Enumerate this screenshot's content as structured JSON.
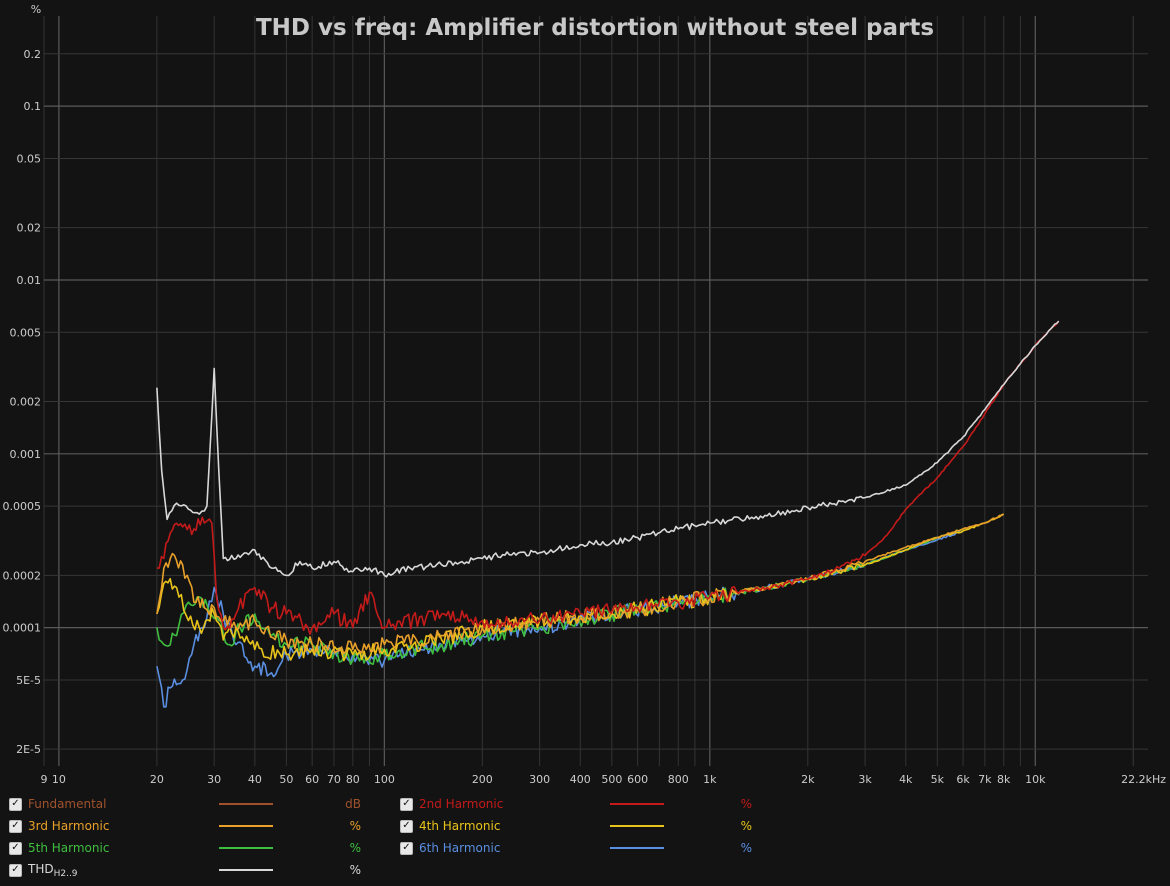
{
  "chart_data": {
    "type": "line",
    "title": "THD vs freq: Amplifier distortion without steel parts",
    "ylabel": "%",
    "y_scale": "log",
    "x_scale": "log",
    "xlim": [
      9,
      22200
    ],
    "ylim": [
      1.6e-05,
      0.33
    ],
    "grid": true,
    "x_ticks": [
      {
        "v": 9,
        "label": "9"
      },
      {
        "v": 10,
        "label": "10"
      },
      {
        "v": 20,
        "label": "20"
      },
      {
        "v": 30,
        "label": "30"
      },
      {
        "v": 40,
        "label": "40"
      },
      {
        "v": 50,
        "label": "50"
      },
      {
        "v": 60,
        "label": "60"
      },
      {
        "v": 70,
        "label": "70"
      },
      {
        "v": 80,
        "label": "80"
      },
      {
        "v": 100,
        "label": "100"
      },
      {
        "v": 200,
        "label": "200"
      },
      {
        "v": 300,
        "label": "300"
      },
      {
        "v": 400,
        "label": "400"
      },
      {
        "v": 500,
        "label": "500"
      },
      {
        "v": 600,
        "label": "600"
      },
      {
        "v": 800,
        "label": "800"
      },
      {
        "v": 1000,
        "label": "1k"
      },
      {
        "v": 2000,
        "label": "2k"
      },
      {
        "v": 3000,
        "label": "3k"
      },
      {
        "v": 4000,
        "label": "4k"
      },
      {
        "v": 5000,
        "label": "5k"
      },
      {
        "v": 6000,
        "label": "6k"
      },
      {
        "v": 7000,
        "label": "7k"
      },
      {
        "v": 8000,
        "label": "8k"
      },
      {
        "v": 10000,
        "label": "10k"
      },
      {
        "v": 22200,
        "label": "22.2kHz"
      }
    ],
    "y_ticks": [
      {
        "v": 0.2,
        "label": "0.2"
      },
      {
        "v": 0.1,
        "label": "0.1"
      },
      {
        "v": 0.05,
        "label": "0.05"
      },
      {
        "v": 0.02,
        "label": "0.02"
      },
      {
        "v": 0.01,
        "label": "0.01"
      },
      {
        "v": 0.005,
        "label": "0.005"
      },
      {
        "v": 0.002,
        "label": "0.002"
      },
      {
        "v": 0.001,
        "label": "0.001"
      },
      {
        "v": 0.0005,
        "label": "0.0005"
      },
      {
        "v": 0.0002,
        "label": "0.0002"
      },
      {
        "v": 0.0001,
        "label": "0.0001"
      },
      {
        "v": 5e-05,
        "label": "5E-5"
      },
      {
        "v": 2e-05,
        "label": "2E-5"
      }
    ],
    "series": [
      {
        "name": "THD",
        "color": "#d8d8d8",
        "points": [
          [
            20,
            0.0024
          ],
          [
            20.7,
            0.0008
          ],
          [
            21.5,
            0.00042
          ],
          [
            23,
            0.00052
          ],
          [
            25,
            0.00048
          ],
          [
            27,
            0.00045
          ],
          [
            28.5,
            0.0005
          ],
          [
            30,
            0.0031
          ],
          [
            31,
            0.0008
          ],
          [
            32,
            0.00025
          ],
          [
            35,
            0.00025
          ],
          [
            40,
            0.00028
          ],
          [
            45,
            0.00022
          ],
          [
            50,
            0.0002
          ],
          [
            55,
            0.00024
          ],
          [
            60,
            0.00022
          ],
          [
            70,
            0.00024
          ],
          [
            80,
            0.00021
          ],
          [
            90,
            0.00022
          ],
          [
            100,
            0.0002
          ],
          [
            120,
            0.00022
          ],
          [
            150,
            0.00023
          ],
          [
            200,
            0.00025
          ],
          [
            250,
            0.00027
          ],
          [
            300,
            0.00027
          ],
          [
            400,
            0.0003
          ],
          [
            500,
            0.00031
          ],
          [
            600,
            0.00033
          ],
          [
            800,
            0.00037
          ],
          [
            1000,
            0.0004
          ],
          [
            1500,
            0.00044
          ],
          [
            2000,
            0.00049
          ],
          [
            3000,
            0.00056
          ],
          [
            4000,
            0.00066
          ],
          [
            5000,
            0.00089
          ],
          [
            6000,
            0.00125
          ],
          [
            7000,
            0.0018
          ],
          [
            8000,
            0.0025
          ],
          [
            9000,
            0.0033
          ],
          [
            10000,
            0.0042
          ],
          [
            11000,
            0.0051
          ],
          [
            11800,
            0.0058
          ]
        ]
      },
      {
        "name": "2nd Harmonic",
        "color": "#c41a1a",
        "points": [
          [
            20,
            0.00022
          ],
          [
            21,
            0.00025
          ],
          [
            22,
            0.00035
          ],
          [
            24,
            0.00038
          ],
          [
            26,
            0.00037
          ],
          [
            28,
            0.0004
          ],
          [
            29.5,
            0.0004
          ],
          [
            30.5,
            0.00015
          ],
          [
            32,
            0.0001
          ],
          [
            35,
            0.00012
          ],
          [
            38,
            0.00016
          ],
          [
            40,
            0.00017
          ],
          [
            45,
            0.00013
          ],
          [
            50,
            0.00012
          ],
          [
            60,
            0.0001
          ],
          [
            70,
            0.00012
          ],
          [
            80,
            0.0001
          ],
          [
            90,
            0.00016
          ],
          [
            100,
            0.0001
          ],
          [
            150,
            0.00012
          ],
          [
            200,
            0.00011
          ],
          [
            300,
            0.00011
          ],
          [
            400,
            0.00012
          ],
          [
            600,
            0.00013
          ],
          [
            800,
            0.00014
          ],
          [
            1000,
            0.00015
          ],
          [
            1500,
            0.00017
          ],
          [
            2000,
            0.00019
          ],
          [
            2500,
            0.00022
          ],
          [
            3000,
            0.00026
          ],
          [
            3500,
            0.00034
          ],
          [
            4000,
            0.00048
          ],
          [
            5000,
            0.00073
          ],
          [
            6000,
            0.0011
          ],
          [
            7000,
            0.0017
          ],
          [
            8000,
            0.0025
          ],
          [
            9000,
            0.0033
          ],
          [
            10000,
            0.0042
          ],
          [
            11000,
            0.0051
          ],
          [
            11800,
            0.0058
          ]
        ]
      },
      {
        "name": "3rd Harmonic",
        "color": "#e8a02a",
        "points": [
          [
            20,
            0.00012
          ],
          [
            21,
            0.00022
          ],
          [
            22,
            0.00025
          ],
          [
            24,
            0.00023
          ],
          [
            26,
            0.00014
          ],
          [
            28,
            0.00013
          ],
          [
            30,
            0.00013
          ],
          [
            32,
            0.00011
          ],
          [
            35,
            0.0001
          ],
          [
            40,
            0.00011
          ],
          [
            50,
            8.5e-05
          ],
          [
            60,
            8e-05
          ],
          [
            80,
            7.5e-05
          ],
          [
            100,
            8e-05
          ],
          [
            150,
            9e-05
          ],
          [
            200,
            0.0001
          ],
          [
            300,
            0.00011
          ],
          [
            500,
            0.00012
          ],
          [
            800,
            0.00014
          ],
          [
            1000,
            0.00015
          ],
          [
            1500,
            0.00017
          ],
          [
            2000,
            0.00019
          ],
          [
            3000,
            0.00024
          ],
          [
            4000,
            0.00029
          ],
          [
            5000,
            0.00033
          ],
          [
            6000,
            0.00037
          ],
          [
            7000,
            0.0004
          ],
          [
            8000,
            0.00045
          ]
        ]
      },
      {
        "name": "4th Harmonic",
        "color": "#e8c41a",
        "points": [
          [
            20,
            0.00012
          ],
          [
            21,
            0.00018
          ],
          [
            23,
            0.00017
          ],
          [
            25,
            0.00011
          ],
          [
            27,
            0.0001
          ],
          [
            30,
            0.00012
          ],
          [
            32,
            8.5e-05
          ],
          [
            35,
            0.0001
          ],
          [
            40,
            7.5e-05
          ],
          [
            50,
            7e-05
          ],
          [
            60,
            7.5e-05
          ],
          [
            80,
            7e-05
          ],
          [
            100,
            7.5e-05
          ],
          [
            150,
            8.5e-05
          ],
          [
            200,
            0.0001
          ],
          [
            300,
            0.00011
          ],
          [
            500,
            0.00012
          ],
          [
            800,
            0.00014
          ],
          [
            1000,
            0.00015
          ],
          [
            1500,
            0.00017
          ],
          [
            2000,
            0.00019
          ],
          [
            3000,
            0.00023
          ],
          [
            4000,
            0.00028
          ],
          [
            5000,
            0.00033
          ],
          [
            6000,
            0.00036
          ],
          [
            7000,
            0.0004
          ],
          [
            8000,
            0.00045
          ]
        ]
      },
      {
        "name": "5th Harmonic",
        "color": "#3fbf3f",
        "points": [
          [
            20,
            0.0001
          ],
          [
            21,
            8e-05
          ],
          [
            23,
            9e-05
          ],
          [
            25,
            0.00014
          ],
          [
            27,
            0.00015
          ],
          [
            29,
            0.00012
          ],
          [
            31,
            0.00011
          ],
          [
            33,
            8e-05
          ],
          [
            36,
            0.0001
          ],
          [
            40,
            0.00012
          ],
          [
            45,
            9e-05
          ],
          [
            50,
            8e-05
          ],
          [
            60,
            8e-05
          ],
          [
            80,
            6.5e-05
          ],
          [
            100,
            7e-05
          ],
          [
            150,
            8e-05
          ],
          [
            200,
            9e-05
          ],
          [
            300,
            0.0001
          ],
          [
            500,
            0.00012
          ],
          [
            800,
            0.00014
          ],
          [
            1000,
            0.00015
          ],
          [
            1500,
            0.00017
          ],
          [
            2000,
            0.00019
          ],
          [
            3000,
            0.00023
          ],
          [
            4000,
            0.00028
          ],
          [
            5000,
            0.00033
          ],
          [
            6000,
            0.00037
          ]
        ]
      },
      {
        "name": "6th Harmonic",
        "color": "#5a8ee0",
        "points": [
          [
            20,
            6e-05
          ],
          [
            21,
            3.5e-05
          ],
          [
            22,
            4.5e-05
          ],
          [
            24,
            5e-05
          ],
          [
            26,
            8e-05
          ],
          [
            28,
            0.0001
          ],
          [
            30,
            0.00017
          ],
          [
            32,
            0.00012
          ],
          [
            35,
            8e-05
          ],
          [
            40,
            6e-05
          ],
          [
            45,
            5.5e-05
          ],
          [
            50,
            7e-05
          ],
          [
            60,
            7.5e-05
          ],
          [
            80,
            7e-05
          ],
          [
            100,
            6.5e-05
          ],
          [
            150,
            8e-05
          ],
          [
            200,
            9e-05
          ],
          [
            300,
            0.0001
          ],
          [
            500,
            0.00012
          ],
          [
            800,
            0.00014
          ],
          [
            1000,
            0.00015
          ],
          [
            1500,
            0.00017
          ],
          [
            2000,
            0.00019
          ],
          [
            3000,
            0.00023
          ],
          [
            4000,
            0.00028
          ],
          [
            5000,
            0.00032
          ],
          [
            6000,
            0.00036
          ]
        ]
      }
    ]
  },
  "legend": [
    {
      "label": "Fundamental",
      "unit": "dB",
      "color": "#a0522d",
      "checked": true
    },
    {
      "label": "2nd Harmonic",
      "unit": "%",
      "color": "#c41a1a",
      "checked": true
    },
    {
      "label": "3rd Harmonic",
      "unit": "%",
      "color": "#e8a02a",
      "checked": true
    },
    {
      "label": "4th Harmonic",
      "unit": "%",
      "color": "#e8c41a",
      "checked": true
    },
    {
      "label": "5th Harmonic",
      "unit": "%",
      "color": "#3fbf3f",
      "checked": true
    },
    {
      "label": "6th Harmonic",
      "unit": "%",
      "color": "#5a8ee0",
      "checked": true
    },
    {
      "label": "THD",
      "label_sub": "H2..9",
      "unit": "%",
      "color": "#d8d8d8",
      "checked": true
    }
  ],
  "check_mark": "✓"
}
